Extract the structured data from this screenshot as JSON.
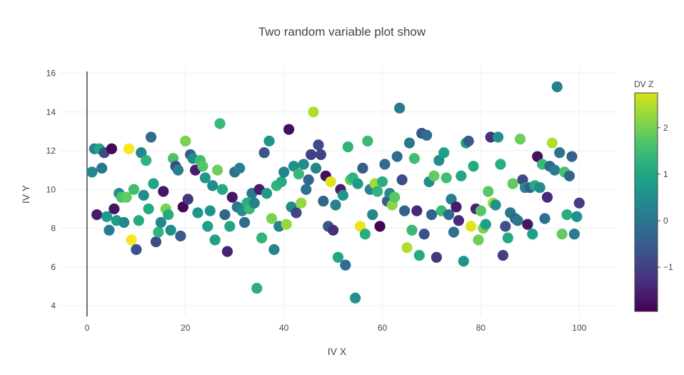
{
  "chart_data": {
    "type": "scatter",
    "title": "Two random variable plot show",
    "xlabel": "IV X",
    "ylabel": "IV Y",
    "xlim": [
      -5.5,
      107.5
    ],
    "ylim": [
      3.45,
      16.35
    ],
    "xticks": [
      0,
      20,
      40,
      60,
      80,
      100
    ],
    "yticks": [
      4,
      6,
      8,
      10,
      12,
      14,
      16
    ],
    "grid": true,
    "colorbar": {
      "title": "DV Z",
      "colorscale": "Viridis",
      "range": [
        -1.95,
        2.75
      ],
      "ticks": [
        -1,
        0,
        1,
        2
      ],
      "tick_labels": [
        "−1",
        "0",
        "1",
        "2"
      ]
    },
    "points": [
      [
        1,
        10.9,
        0.2
      ],
      [
        1.5,
        12.1,
        0.1
      ],
      [
        2,
        8.7,
        -1.6
      ],
      [
        2.5,
        12.1,
        0.8
      ],
      [
        3,
        11.1,
        -0.1
      ],
      [
        3.5,
        11.9,
        -0.9
      ],
      [
        4,
        8.6,
        0.6
      ],
      [
        4.5,
        7.9,
        0.0
      ],
      [
        5,
        12.1,
        -1.9
      ],
      [
        5.5,
        9.0,
        -1.7
      ],
      [
        6,
        8.4,
        0.6
      ],
      [
        6.5,
        9.8,
        0.3
      ],
      [
        7,
        9.6,
        1.4
      ],
      [
        7.5,
        8.3,
        0.2
      ],
      [
        8,
        9.6,
        1.6
      ],
      [
        8.5,
        12.1,
        2.7
      ],
      [
        9,
        7.4,
        2.7
      ],
      [
        9.5,
        10.0,
        1.3
      ],
      [
        10,
        6.9,
        -0.8
      ],
      [
        10.5,
        8.4,
        0.9
      ],
      [
        11,
        11.9,
        0.2
      ],
      [
        11.5,
        9.7,
        0.3
      ],
      [
        12,
        11.5,
        1.1
      ],
      [
        12.5,
        9.0,
        0.9
      ],
      [
        13,
        12.7,
        -0.3
      ],
      [
        13.5,
        10.3,
        0.8
      ],
      [
        14,
        7.3,
        -0.9
      ],
      [
        14.5,
        7.8,
        1.1
      ],
      [
        15,
        8.3,
        0.2
      ],
      [
        15.5,
        9.9,
        -1.7
      ],
      [
        16,
        9.0,
        1.8
      ],
      [
        16.5,
        8.7,
        0.9
      ],
      [
        17,
        7.9,
        0.3
      ],
      [
        17.5,
        11.6,
        1.4
      ],
      [
        18,
        11.2,
        -0.9
      ],
      [
        18.5,
        11.0,
        0.1
      ],
      [
        19,
        7.6,
        -0.6
      ],
      [
        19.5,
        9.1,
        -1.9
      ],
      [
        20,
        12.5,
        1.8
      ],
      [
        20.5,
        9.5,
        -1.2
      ],
      [
        21,
        11.8,
        -0.6
      ],
      [
        21.5,
        11.6,
        0.3
      ],
      [
        22,
        11.0,
        -1.6
      ],
      [
        22.5,
        8.8,
        0.5
      ],
      [
        23,
        11.5,
        1.3
      ],
      [
        23.5,
        11.2,
        1.5
      ],
      [
        24,
        10.6,
        0.5
      ],
      [
        24.5,
        8.1,
        0.7
      ],
      [
        25,
        8.9,
        0.4
      ],
      [
        25.5,
        10.2,
        0.3
      ],
      [
        26,
        7.4,
        0.7
      ],
      [
        26.5,
        11.0,
        1.7
      ],
      [
        27,
        13.4,
        1.2
      ],
      [
        27.5,
        10.0,
        0.9
      ],
      [
        28,
        8.7,
        -0.4
      ],
      [
        28.5,
        6.8,
        -1.5
      ],
      [
        29,
        8.1,
        0.8
      ],
      [
        29.5,
        9.6,
        -1.7
      ],
      [
        30,
        10.9,
        -0.2
      ],
      [
        30.5,
        9.1,
        -0.1
      ],
      [
        31,
        11.1,
        0.1
      ],
      [
        31.5,
        8.9,
        0.3
      ],
      [
        32,
        8.3,
        -0.3
      ],
      [
        32.5,
        9.3,
        1.0
      ],
      [
        33,
        9.0,
        1.2
      ],
      [
        33.5,
        9.8,
        -0.1
      ],
      [
        34,
        9.3,
        0.1
      ],
      [
        34.5,
        4.9,
        1.0
      ],
      [
        35,
        10.0,
        -1.6
      ],
      [
        35.5,
        7.5,
        1.1
      ],
      [
        36,
        11.9,
        -0.7
      ],
      [
        36.5,
        9.8,
        0.6
      ],
      [
        37,
        12.5,
        0.5
      ],
      [
        37.5,
        8.5,
        1.8
      ],
      [
        38,
        6.9,
        0.1
      ],
      [
        38.5,
        10.2,
        1.1
      ],
      [
        39,
        8.1,
        0.1
      ],
      [
        39.5,
        10.4,
        0.9
      ],
      [
        40,
        10.9,
        0.1
      ],
      [
        40.5,
        8.2,
        2.0
      ],
      [
        41,
        13.1,
        -1.8
      ],
      [
        41.5,
        9.1,
        0.3
      ],
      [
        42,
        11.2,
        0.4
      ],
      [
        42.5,
        8.8,
        -1.0
      ],
      [
        43,
        10.8,
        1.2
      ],
      [
        43.5,
        9.3,
        2.0
      ],
      [
        44,
        11.3,
        0.3
      ],
      [
        44.5,
        10.0,
        -0.2
      ],
      [
        45,
        10.5,
        -0.4
      ],
      [
        45.5,
        11.8,
        -1.1
      ],
      [
        46,
        14.0,
        2.2
      ],
      [
        46.5,
        11.1,
        0.2
      ],
      [
        47,
        12.3,
        -0.9
      ],
      [
        47.5,
        11.8,
        -1.0
      ],
      [
        48,
        9.4,
        -0.4
      ],
      [
        48.5,
        10.7,
        -1.8
      ],
      [
        49,
        8.1,
        -0.7
      ],
      [
        49.5,
        10.4,
        2.5
      ],
      [
        50,
        7.9,
        -1.3
      ],
      [
        50.5,
        9.2,
        0.1
      ],
      [
        51,
        6.5,
        0.8
      ],
      [
        51.5,
        10.0,
        -1.6
      ],
      [
        52,
        9.7,
        0.5
      ],
      [
        52.5,
        6.1,
        -0.3
      ],
      [
        53,
        12.2,
        1.1
      ],
      [
        53.5,
        10.5,
        1.6
      ],
      [
        54,
        10.6,
        1.1
      ],
      [
        54.5,
        4.4,
        0.4
      ],
      [
        55,
        10.3,
        0.6
      ],
      [
        55.5,
        8.1,
        2.6
      ],
      [
        56,
        11.1,
        -0.6
      ],
      [
        56.5,
        7.7,
        1.0
      ],
      [
        57,
        12.5,
        1.2
      ],
      [
        57.5,
        10.0,
        0.2
      ],
      [
        58,
        8.7,
        0.2
      ],
      [
        58.5,
        10.3,
        2.1
      ],
      [
        59,
        9.9,
        1.1
      ],
      [
        59.5,
        8.1,
        -1.9
      ],
      [
        60,
        10.4,
        1.0
      ],
      [
        60.5,
        11.3,
        -0.3
      ],
      [
        61,
        9.4,
        -0.6
      ],
      [
        61.5,
        9.8,
        0.2
      ],
      [
        62,
        9.2,
        1.9
      ],
      [
        62.5,
        9.6,
        1.5
      ],
      [
        63,
        11.7,
        -0.3
      ],
      [
        63.5,
        14.2,
        0.0
      ],
      [
        64,
        10.5,
        -0.9
      ],
      [
        64.5,
        8.9,
        -0.5
      ],
      [
        65,
        7.0,
        2.2
      ],
      [
        65.5,
        12.4,
        -0.1
      ],
      [
        66,
        7.9,
        1.2
      ],
      [
        66.5,
        11.6,
        1.3
      ],
      [
        67,
        8.9,
        -1.4
      ],
      [
        67.5,
        6.6,
        0.9
      ],
      [
        68,
        12.9,
        -0.7
      ],
      [
        68.5,
        7.7,
        -0.8
      ],
      [
        69,
        12.8,
        -0.3
      ],
      [
        69.5,
        10.4,
        0.3
      ],
      [
        70,
        8.7,
        -0.5
      ],
      [
        70.5,
        10.7,
        1.6
      ],
      [
        71,
        6.5,
        -1.2
      ],
      [
        71.5,
        11.5,
        0.3
      ],
      [
        72,
        8.9,
        1.2
      ],
      [
        72.5,
        11.9,
        0.7
      ],
      [
        73,
        10.6,
        1.3
      ],
      [
        73.5,
        8.7,
        -0.3
      ],
      [
        74,
        9.5,
        0.0
      ],
      [
        74.5,
        7.8,
        -0.2
      ],
      [
        75,
        9.1,
        -1.6
      ],
      [
        75.5,
        8.4,
        -1.4
      ],
      [
        76,
        10.7,
        0.8
      ],
      [
        76.5,
        6.3,
        0.5
      ],
      [
        77,
        12.4,
        0.7
      ],
      [
        77.5,
        12.5,
        -0.6
      ],
      [
        78,
        8.1,
        2.5
      ],
      [
        78.5,
        11.2,
        0.9
      ],
      [
        79,
        9.0,
        -1.5
      ],
      [
        79.5,
        7.4,
        1.7
      ],
      [
        80,
        8.9,
        1.5
      ],
      [
        80.5,
        8.0,
        1.8
      ],
      [
        81,
        8.2,
        0.7
      ],
      [
        81.5,
        9.9,
        1.5
      ],
      [
        82,
        12.7,
        -1.3
      ],
      [
        82.5,
        9.3,
        2.1
      ],
      [
        83,
        9.2,
        0.4
      ],
      [
        83.5,
        12.7,
        0.4
      ],
      [
        84,
        11.3,
        1.0
      ],
      [
        84.5,
        6.6,
        -1.1
      ],
      [
        85,
        8.1,
        -0.8
      ],
      [
        85.5,
        7.5,
        0.9
      ],
      [
        86,
        8.8,
        -0.1
      ],
      [
        86.5,
        10.3,
        1.6
      ],
      [
        87,
        8.5,
        -0.4
      ],
      [
        87.5,
        8.4,
        -0.1
      ],
      [
        88,
        12.6,
        1.7
      ],
      [
        88.5,
        10.5,
        -0.9
      ],
      [
        89,
        10.1,
        0.2
      ],
      [
        89.5,
        8.2,
        -1.7
      ],
      [
        90,
        10.1,
        -0.5
      ],
      [
        90.5,
        7.7,
        0.7
      ],
      [
        91,
        10.2,
        0.9
      ],
      [
        91.5,
        11.7,
        -1.8
      ],
      [
        92,
        10.1,
        0.3
      ],
      [
        92.5,
        11.3,
        1.2
      ],
      [
        93,
        8.5,
        -0.2
      ],
      [
        93.5,
        9.6,
        -1.4
      ],
      [
        94,
        11.2,
        -0.4
      ],
      [
        94.5,
        12.4,
        2.2
      ],
      [
        95,
        11.0,
        0.0
      ],
      [
        95.5,
        15.3,
        0.1
      ],
      [
        96,
        11.9,
        -0.2
      ],
      [
        96.5,
        7.7,
        1.6
      ],
      [
        97,
        10.9,
        1.4
      ],
      [
        97.5,
        8.7,
        1.0
      ],
      [
        98,
        10.7,
        -0.4
      ],
      [
        98.5,
        11.7,
        -0.5
      ],
      [
        99,
        7.7,
        0.0
      ],
      [
        99.5,
        8.6,
        0.4
      ],
      [
        100,
        9.3,
        -1.1
      ]
    ]
  }
}
